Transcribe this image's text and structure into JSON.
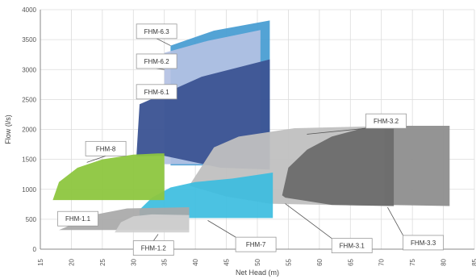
{
  "chart_data": {
    "type": "area",
    "xlabel": "Net Head (m)",
    "ylabel": "Flow (l/s)",
    "xlim": [
      15,
      85
    ],
    "ylim": [
      0,
      4000
    ],
    "x_ticks": [
      15,
      20,
      25,
      30,
      35,
      40,
      45,
      50,
      55,
      60,
      65,
      70,
      75,
      80,
      85
    ],
    "y_ticks": [
      0,
      500,
      1000,
      1500,
      2000,
      2500,
      3000,
      3500,
      4000
    ],
    "grid": true,
    "series": [
      {
        "name": "FHM-6.3",
        "color": "#4a9ed3",
        "opacity": 0.95,
        "polygon": [
          [
            36,
            1400
          ],
          [
            36,
            3400
          ],
          [
            43,
            3650
          ],
          [
            52,
            3820
          ],
          [
            52,
            1400
          ]
        ],
        "callout": {
          "label_at": [
            30.5,
            3760
          ],
          "point": [
            36,
            3400
          ]
        }
      },
      {
        "name": "FHM-6.2",
        "color": "#b4c1e3",
        "opacity": 0.92,
        "polygon": [
          [
            35,
            1420
          ],
          [
            35,
            3280
          ],
          [
            42,
            3480
          ],
          [
            50.5,
            3660
          ],
          [
            50.5,
            1420
          ]
        ],
        "callout": {
          "label_at": [
            30.5,
            3260
          ],
          "point": [
            35,
            3000
          ]
        }
      },
      {
        "name": "FHM-6.1",
        "color": "#3c5494",
        "opacity": 0.96,
        "polygon": [
          [
            30.5,
            1550
          ],
          [
            31,
            2420
          ],
          [
            35,
            2600
          ],
          [
            41,
            2880
          ],
          [
            52,
            3170
          ],
          [
            52,
            1330
          ],
          [
            44,
            1360
          ],
          [
            35,
            1560
          ]
        ],
        "callout": {
          "label_at": [
            30.5,
            2750
          ],
          "point": [
            33,
            2550
          ]
        }
      },
      {
        "name": "FHM-3.2",
        "color": "#c0c0c0",
        "opacity": 0.95,
        "polygon": [
          [
            39,
            1060
          ],
          [
            43,
            1700
          ],
          [
            47,
            1880
          ],
          [
            56,
            2020
          ],
          [
            72,
            2060
          ],
          [
            72,
            720
          ],
          [
            61,
            740
          ],
          [
            52,
            760
          ],
          [
            45,
            880
          ]
        ],
        "callout": {
          "label_at": [
            67.5,
            2260
          ],
          "point": [
            58,
            1920
          ]
        }
      },
      {
        "name": "FHM-3.3",
        "color": "#909090",
        "opacity": 0.96,
        "polygon": [
          [
            70.5,
            740
          ],
          [
            70.5,
            2060
          ],
          [
            81,
            2060
          ],
          [
            81,
            720
          ]
        ],
        "callout": {
          "label_at": [
            73.5,
            230
          ],
          "point": [
            71,
            700
          ]
        }
      },
      {
        "name": "FHM-3.1",
        "color": "#6c6c6c",
        "opacity": 0.96,
        "polygon": [
          [
            54,
            900
          ],
          [
            55,
            1360
          ],
          [
            58,
            1660
          ],
          [
            62,
            1880
          ],
          [
            67,
            2020
          ],
          [
            72,
            2060
          ],
          [
            72,
            720
          ],
          [
            66,
            730
          ],
          [
            62,
            740
          ],
          [
            54.5,
            860
          ]
        ],
        "callout": {
          "label_at": [
            62,
            180
          ],
          "point": [
            54.5,
            760
          ]
        }
      },
      {
        "name": "FHM-7",
        "color": "#3cbddf",
        "opacity": 0.92,
        "polygon": [
          [
            31,
            660
          ],
          [
            33,
            860
          ],
          [
            36,
            1030
          ],
          [
            40,
            1120
          ],
          [
            46,
            1180
          ],
          [
            52.5,
            1280
          ],
          [
            52.5,
            520
          ],
          [
            31,
            520
          ]
        ],
        "callout": {
          "label_at": [
            46.5,
            200
          ],
          "point": [
            42,
            480
          ]
        }
      },
      {
        "name": "FHM-8",
        "color": "#8dc63f",
        "opacity": 0.95,
        "polygon": [
          [
            17,
            820
          ],
          [
            18,
            1120
          ],
          [
            21,
            1360
          ],
          [
            25,
            1500
          ],
          [
            30,
            1580
          ],
          [
            34,
            1600
          ],
          [
            35,
            1600
          ],
          [
            35,
            820
          ]
        ],
        "callout": {
          "label_at": [
            22.3,
            1800
          ],
          "point": [
            22.5,
            1450
          ]
        }
      },
      {
        "name": "FHM-1.1",
        "color": "#a8a8a8",
        "opacity": 0.92,
        "polygon": [
          [
            18,
            320
          ],
          [
            21,
            450
          ],
          [
            24,
            580
          ],
          [
            29,
            680
          ],
          [
            39,
            700
          ],
          [
            39,
            320
          ]
        ],
        "callout": {
          "label_at": [
            17.8,
            630
          ],
          "point": [
            18,
            400
          ]
        }
      },
      {
        "name": "FHM-1.2",
        "color": "#d0d0d0",
        "opacity": 0.92,
        "polygon": [
          [
            27,
            280
          ],
          [
            28,
            450
          ],
          [
            30,
            550
          ],
          [
            33,
            580
          ],
          [
            39,
            570
          ],
          [
            39,
            280
          ]
        ],
        "callout": {
          "label_at": [
            30,
            140
          ],
          "point": [
            34,
            250
          ]
        }
      }
    ]
  }
}
